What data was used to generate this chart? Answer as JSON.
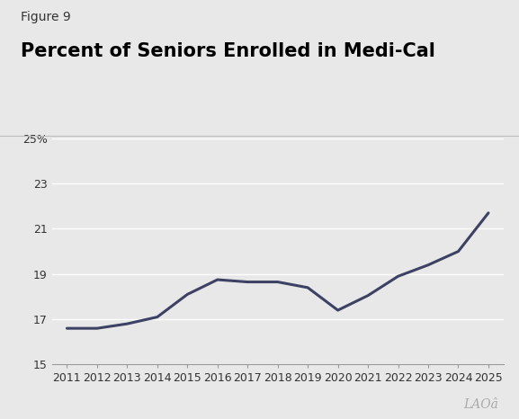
{
  "figure_label": "Figure 9",
  "title": "Percent of Seniors Enrolled in Medi-Cal",
  "years": [
    2011,
    2012,
    2013,
    2014,
    2015,
    2016,
    2017,
    2018,
    2019,
    2020,
    2021,
    2022,
    2023,
    2024,
    2025
  ],
  "values": [
    16.6,
    16.6,
    16.8,
    17.1,
    18.1,
    18.75,
    18.65,
    18.65,
    18.4,
    17.4,
    18.05,
    18.9,
    19.4,
    20.0,
    21.7
  ],
  "line_color": "#3d4264",
  "line_width": 2.2,
  "background_color": "#e8e8e8",
  "plot_bg_color": "#e8e8e8",
  "ylim": [
    15,
    25
  ],
  "yticks": [
    15,
    17,
    19,
    21,
    23,
    25
  ],
  "ytick_labels": [
    "15",
    "17",
    "19",
    "21",
    "23",
    "25%"
  ],
  "grid_color": "#ffffff",
  "grid_linewidth": 1.0,
  "watermark": "LAOâ",
  "title_fontsize": 15,
  "figure_label_fontsize": 10,
  "tick_fontsize": 9
}
